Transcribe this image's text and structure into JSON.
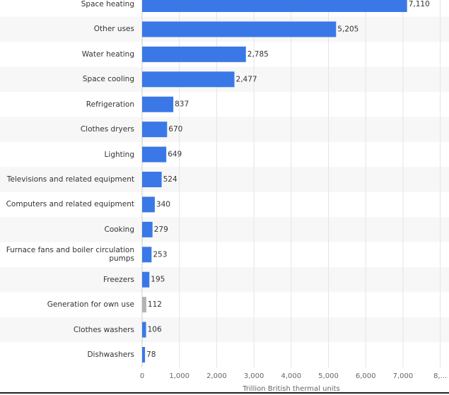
{
  "chart_data": {
    "type": "hbar",
    "categories": [
      "Space heating",
      "Other uses",
      "Water heating",
      "Space cooling",
      "Refrigeration",
      "Clothes dryers",
      "Lighting",
      "Televisions and related equipment",
      "Computers and related equipment",
      "Cooking",
      "Furnace fans and boiler circulation pumps",
      "Freezers",
      "Generation for own use",
      "Clothes washers",
      "Dishwashers"
    ],
    "values": [
      7110,
      5205,
      2785,
      2477,
      837,
      670,
      649,
      524,
      340,
      279,
      253,
      195,
      112,
      106,
      78
    ],
    "value_labels": [
      "7,110",
      "5,205",
      "2,785",
      "2,477",
      "837",
      "670",
      "649",
      "524",
      "340",
      "279",
      "253",
      "195",
      "112",
      "106",
      "78"
    ],
    "colors": [
      "#3b78e7",
      "#3b78e7",
      "#3b78e7",
      "#3b78e7",
      "#3b78e7",
      "#3b78e7",
      "#3b78e7",
      "#3b78e7",
      "#3b78e7",
      "#3b78e7",
      "#3b78e7",
      "#3b78e7",
      "#b3b3b3",
      "#3b78e7",
      "#3b78e7"
    ],
    "xlabel": "Trillion British thermal units",
    "xlim": [
      0,
      8000
    ],
    "xticks": [
      0,
      {
        "value": 1000,
        "label": "1,000"
      },
      {
        "value": 2000,
        "label": "2,000"
      },
      {
        "value": 3000,
        "label": "3,000"
      },
      {
        "value": 4000,
        "label": "4,000"
      },
      {
        "value": 5000,
        "label": "5,000"
      },
      {
        "value": 6000,
        "label": "6,000"
      },
      {
        "value": 7000,
        "label": "7,000"
      },
      {
        "value": 8000,
        "label": "8,..."
      }
    ],
    "grid": true
  }
}
